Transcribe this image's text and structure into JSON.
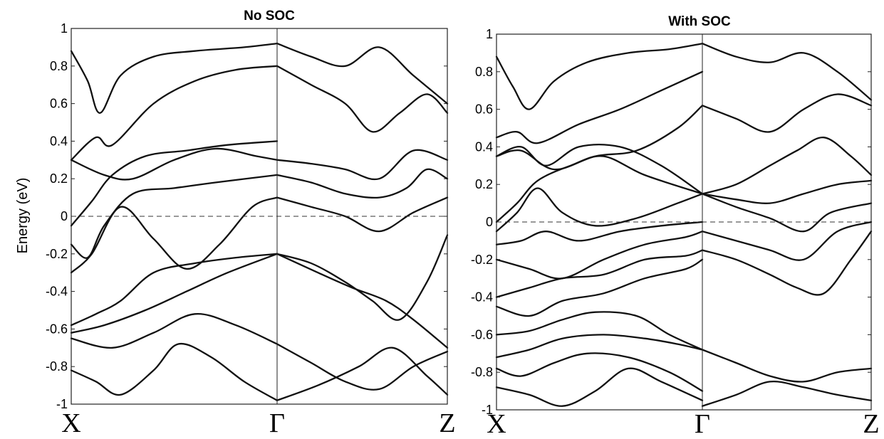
{
  "chart_data": [
    {
      "type": "line",
      "title": "No SOC",
      "ylabel": "Energy (eV)",
      "ylim": [
        -1,
        1
      ],
      "yticks": [
        "1",
        "0.8",
        "0.6",
        "0.4",
        "0.2",
        "0",
        "-0.2",
        "-0.4",
        "-0.6",
        "-0.8",
        "-1"
      ],
      "kpoints": [
        "X",
        "Γ",
        "Z"
      ],
      "fermi_level": 0,
      "series": [
        {
          "x": [
            0.0,
            0.04,
            0.07,
            0.12,
            0.2,
            0.3,
            0.42,
            0.5
          ],
          "values": [
            0.88,
            0.72,
            0.55,
            0.75,
            0.85,
            0.88,
            0.9,
            0.92
          ]
        },
        {
          "x": [
            0.0,
            0.06,
            0.1,
            0.2,
            0.3,
            0.4,
            0.5
          ],
          "values": [
            0.3,
            0.42,
            0.38,
            0.6,
            0.72,
            0.78,
            0.8
          ]
        },
        {
          "x": [
            0.0,
            0.08,
            0.15,
            0.25,
            0.35,
            0.45,
            0.5
          ],
          "values": [
            0.3,
            0.22,
            0.2,
            0.3,
            0.36,
            0.32,
            0.3
          ]
        },
        {
          "x": [
            0.0,
            0.05,
            0.1,
            0.18,
            0.28,
            0.38,
            0.5
          ],
          "values": [
            -0.05,
            0.08,
            0.22,
            0.32,
            0.35,
            0.38,
            0.4
          ]
        },
        {
          "x": [
            0.0,
            0.04,
            0.08,
            0.15,
            0.25,
            0.35,
            0.5
          ],
          "values": [
            -0.15,
            -0.22,
            -0.05,
            0.12,
            0.15,
            0.18,
            0.22
          ]
        },
        {
          "x": [
            0.0,
            0.05,
            0.12,
            0.2,
            0.28,
            0.36,
            0.44,
            0.5
          ],
          "values": [
            -0.3,
            -0.2,
            0.05,
            -0.12,
            -0.28,
            -0.15,
            0.05,
            0.1
          ]
        },
        {
          "x": [
            0.0,
            0.06,
            0.12,
            0.2,
            0.3,
            0.4,
            0.5
          ],
          "values": [
            -0.58,
            -0.52,
            -0.45,
            -0.3,
            -0.25,
            -0.22,
            -0.2
          ]
        },
        {
          "x": [
            0.0,
            0.08,
            0.18,
            0.28,
            0.38,
            0.5
          ],
          "values": [
            -0.62,
            -0.58,
            -0.5,
            -0.4,
            -0.3,
            -0.2
          ]
        },
        {
          "x": [
            0.0,
            0.1,
            0.2,
            0.3,
            0.4,
            0.5
          ],
          "values": [
            -0.65,
            -0.7,
            -0.62,
            -0.52,
            -0.58,
            -0.68
          ]
        },
        {
          "x": [
            0.0,
            0.06,
            0.12,
            0.2,
            0.26,
            0.34,
            0.42,
            0.5
          ],
          "values": [
            -0.82,
            -0.88,
            -0.95,
            -0.82,
            -0.68,
            -0.75,
            -0.88,
            -0.98
          ]
        },
        {
          "x": [
            0.5,
            0.6,
            0.7,
            0.8,
            0.9,
            1.0
          ],
          "values": [
            0.92,
            0.85,
            0.8,
            0.9,
            0.75,
            0.6
          ]
        },
        {
          "x": [
            0.5,
            0.6,
            0.7,
            0.78,
            0.86,
            0.94,
            1.0
          ],
          "values": [
            0.8,
            0.7,
            0.6,
            0.45,
            0.55,
            0.65,
            0.55
          ]
        },
        {
          "x": [
            0.5,
            0.6,
            0.7,
            0.8,
            0.9,
            1.0
          ],
          "values": [
            0.3,
            0.28,
            0.25,
            0.2,
            0.35,
            0.3
          ]
        },
        {
          "x": [
            0.5,
            0.6,
            0.7,
            0.8,
            0.88,
            0.94,
            1.0
          ],
          "values": [
            0.22,
            0.18,
            0.12,
            0.1,
            0.15,
            0.25,
            0.2
          ]
        },
        {
          "x": [
            0.5,
            0.6,
            0.7,
            0.8,
            0.9,
            1.0
          ],
          "values": [
            0.1,
            0.05,
            0.0,
            -0.08,
            0.02,
            0.1
          ]
        },
        {
          "x": [
            0.5,
            0.62,
            0.72,
            0.82,
            0.9,
            1.0
          ],
          "values": [
            -0.2,
            -0.3,
            -0.38,
            -0.45,
            -0.55,
            -0.7
          ]
        },
        {
          "x": [
            0.5,
            0.6,
            0.7,
            0.78,
            0.86,
            0.94,
            1.0
          ],
          "values": [
            -0.2,
            -0.25,
            -0.35,
            -0.45,
            -0.55,
            -0.35,
            -0.1
          ]
        },
        {
          "x": [
            0.5,
            0.6,
            0.7,
            0.8,
            0.9,
            1.0
          ],
          "values": [
            -0.68,
            -0.78,
            -0.88,
            -0.92,
            -0.8,
            -0.72
          ]
        },
        {
          "x": [
            0.5,
            0.62,
            0.74,
            0.84,
            0.94,
            1.0
          ],
          "values": [
            -0.98,
            -0.9,
            -0.8,
            -0.7,
            -0.85,
            -0.95
          ]
        }
      ]
    },
    {
      "type": "line",
      "title": "With SOC",
      "ylim": [
        -1,
        1
      ],
      "yticks": [
        "1",
        "0.8",
        "0.6",
        "0.4",
        "0.2",
        "0",
        "-0.2",
        "-0.4",
        "-0.6",
        "-0.8",
        "-1"
      ],
      "kpoints": [
        "X",
        "Γ",
        "Z"
      ],
      "fermi_level": 0,
      "series": [
        {
          "x": [
            0.0,
            0.04,
            0.08,
            0.14,
            0.22,
            0.32,
            0.42,
            0.5
          ],
          "values": [
            0.88,
            0.72,
            0.6,
            0.75,
            0.85,
            0.9,
            0.92,
            0.95
          ]
        },
        {
          "x": [
            0.0,
            0.05,
            0.1,
            0.2,
            0.3,
            0.4,
            0.5
          ],
          "values": [
            0.45,
            0.48,
            0.42,
            0.52,
            0.6,
            0.7,
            0.8
          ]
        },
        {
          "x": [
            0.0,
            0.06,
            0.14,
            0.24,
            0.34,
            0.44,
            0.5
          ],
          "values": [
            0.35,
            0.38,
            0.28,
            0.35,
            0.38,
            0.5,
            0.62
          ]
        },
        {
          "x": [
            0.0,
            0.06,
            0.12,
            0.2,
            0.3,
            0.4,
            0.5
          ],
          "values": [
            0.35,
            0.4,
            0.3,
            0.4,
            0.4,
            0.3,
            0.15
          ]
        },
        {
          "x": [
            0.0,
            0.05,
            0.1,
            0.18,
            0.26,
            0.36,
            0.5
          ],
          "values": [
            0.0,
            0.1,
            0.22,
            0.3,
            0.35,
            0.25,
            0.15
          ]
        },
        {
          "x": [
            0.0,
            0.05,
            0.1,
            0.16,
            0.24,
            0.34,
            0.44,
            0.5
          ],
          "values": [
            -0.05,
            0.05,
            0.18,
            0.05,
            -0.02,
            0.02,
            0.1,
            0.15
          ]
        },
        {
          "x": [
            0.0,
            0.06,
            0.12,
            0.2,
            0.3,
            0.4,
            0.5
          ],
          "values": [
            -0.12,
            -0.1,
            -0.05,
            -0.1,
            -0.05,
            -0.02,
            0.0
          ]
        },
        {
          "x": [
            0.0,
            0.08,
            0.16,
            0.26,
            0.36,
            0.46,
            0.5
          ],
          "values": [
            -0.2,
            -0.25,
            -0.3,
            -0.2,
            -0.12,
            -0.08,
            -0.05
          ]
        },
        {
          "x": [
            0.0,
            0.08,
            0.16,
            0.26,
            0.36,
            0.46,
            0.5
          ],
          "values": [
            -0.4,
            -0.35,
            -0.3,
            -0.28,
            -0.2,
            -0.18,
            -0.15
          ]
        },
        {
          "x": [
            0.0,
            0.08,
            0.16,
            0.26,
            0.36,
            0.46,
            0.5
          ],
          "values": [
            -0.45,
            -0.5,
            -0.42,
            -0.38,
            -0.3,
            -0.25,
            -0.2
          ]
        },
        {
          "x": [
            0.0,
            0.08,
            0.16,
            0.24,
            0.34,
            0.42,
            0.5
          ],
          "values": [
            -0.6,
            -0.58,
            -0.52,
            -0.48,
            -0.5,
            -0.6,
            -0.68
          ]
        },
        {
          "x": [
            0.0,
            0.08,
            0.16,
            0.26,
            0.36,
            0.44,
            0.5
          ],
          "values": [
            -0.72,
            -0.68,
            -0.62,
            -0.6,
            -0.62,
            -0.65,
            -0.68
          ]
        },
        {
          "x": [
            0.0,
            0.06,
            0.14,
            0.22,
            0.32,
            0.42,
            0.5
          ],
          "values": [
            -0.78,
            -0.82,
            -0.75,
            -0.7,
            -0.72,
            -0.8,
            -0.9
          ]
        },
        {
          "x": [
            0.0,
            0.08,
            0.16,
            0.24,
            0.32,
            0.4,
            0.5
          ],
          "values": [
            -0.88,
            -0.92,
            -0.98,
            -0.9,
            -0.78,
            -0.85,
            -0.95
          ]
        },
        {
          "x": [
            0.5,
            0.6,
            0.7,
            0.8,
            0.9,
            1.0
          ],
          "values": [
            0.95,
            0.88,
            0.85,
            0.9,
            0.8,
            0.65
          ]
        },
        {
          "x": [
            0.5,
            0.6,
            0.7,
            0.8,
            0.9,
            1.0
          ],
          "values": [
            0.62,
            0.55,
            0.48,
            0.6,
            0.68,
            0.62
          ]
        },
        {
          "x": [
            0.5,
            0.6,
            0.7,
            0.78,
            0.86,
            0.94,
            1.0
          ],
          "values": [
            0.15,
            0.2,
            0.3,
            0.38,
            0.45,
            0.35,
            0.25
          ]
        },
        {
          "x": [
            0.5,
            0.6,
            0.7,
            0.8,
            0.9,
            1.0
          ],
          "values": [
            0.15,
            0.12,
            0.1,
            0.15,
            0.2,
            0.22
          ]
        },
        {
          "x": [
            0.5,
            0.6,
            0.7,
            0.8,
            0.88,
            1.0
          ],
          "values": [
            0.15,
            0.08,
            0.02,
            -0.05,
            0.05,
            0.1
          ]
        },
        {
          "x": [
            0.5,
            0.6,
            0.7,
            0.8,
            0.9,
            1.0
          ],
          "values": [
            -0.05,
            -0.1,
            -0.15,
            -0.2,
            -0.05,
            0.0
          ]
        },
        {
          "x": [
            0.5,
            0.6,
            0.7,
            0.78,
            0.86,
            0.94,
            1.0
          ],
          "values": [
            -0.15,
            -0.2,
            -0.28,
            -0.35,
            -0.38,
            -0.2,
            -0.05
          ]
        },
        {
          "x": [
            0.5,
            0.6,
            0.7,
            0.8,
            0.9,
            1.0
          ],
          "values": [
            -0.68,
            -0.75,
            -0.82,
            -0.85,
            -0.8,
            -0.78
          ]
        },
        {
          "x": [
            0.5,
            0.6,
            0.7,
            0.8,
            0.9,
            1.0
          ],
          "values": [
            -0.98,
            -0.92,
            -0.85,
            -0.88,
            -0.92,
            -0.95
          ]
        }
      ]
    }
  ]
}
